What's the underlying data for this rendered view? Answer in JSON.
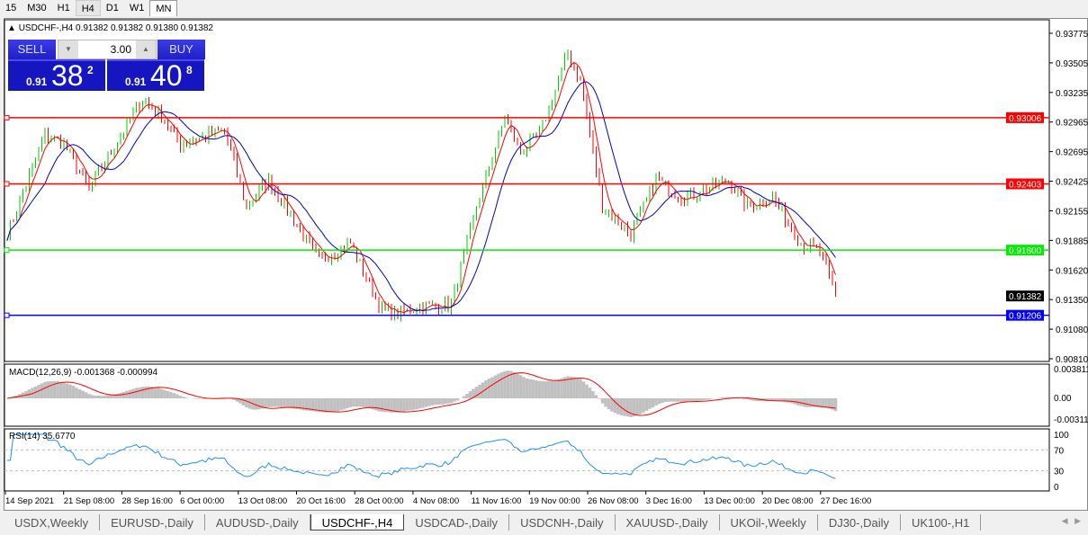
{
  "timeframes": [
    "15",
    "M30",
    "H1",
    "H4",
    "D1",
    "W1",
    "MN"
  ],
  "active_timeframe": "H4",
  "chart": {
    "title": "USDCHF-,H4  0.91382 0.91382 0.91380 0.91382",
    "trade": {
      "sell_label": "SELL",
      "buy_label": "BUY",
      "lot": "3.00",
      "sell_prefix": "0.91",
      "sell_big": "38",
      "sell_sup": "2",
      "buy_prefix": "0.91",
      "buy_big": "40",
      "buy_sup": "8"
    },
    "price_axis": [
      "0.93775",
      "0.93505",
      "0.93235",
      "0.92965",
      "0.92695",
      "0.92425",
      "0.92155",
      "0.91885",
      "0.91620",
      "0.91350",
      "0.91080",
      "0.90810"
    ],
    "levels": [
      {
        "price": 0.93006,
        "label": "0.93006",
        "color": "#ff0000"
      },
      {
        "price": 0.92403,
        "label": "0.92403",
        "color": "#ff0000"
      },
      {
        "price": 0.918,
        "label": "0.91800",
        "color": "#00ee00"
      },
      {
        "price": 0.91206,
        "label": "0.91206",
        "color": "#0000ff"
      }
    ],
    "current_price": "0.91382",
    "time_axis": [
      "14 Sep 2021",
      "21 Sep 08:00",
      "28 Sep 16:00",
      "6 Oct 00:00",
      "13 Oct 08:00",
      "20 Oct 16:00",
      "28 Oct 00:00",
      "4 Nov 08:00",
      "11 Nov 16:00",
      "19 Nov 00:00",
      "26 Nov 08:00",
      "3 Dec 16:00",
      "13 Dec 00:00",
      "20 Dec 08:00",
      "27 Dec 16:00"
    ],
    "macd": {
      "label": "MACD(12,26,9) -0.001368 -0.000994",
      "axis": [
        "0.003811",
        "0.00",
        "-0.003111"
      ]
    },
    "rsi": {
      "label": "RSI(14) 35.6770",
      "axis": [
        "100",
        "70",
        "30",
        "0"
      ]
    },
    "colors": {
      "up": "#00cc00",
      "down": "#ff0000",
      "fast_ma": "#ff0000",
      "slow_ma": "#0000cc",
      "macd_hist": "#c0c0c0",
      "macd_signal": "#ff0000",
      "rsi": "#1e90ff"
    }
  },
  "chart_data": {
    "type": "candlestick",
    "ylim": [
      0.9081,
      0.93775
    ],
    "close_path": [
      [
        0,
        0.91949
      ],
      [
        12,
        0.9285
      ],
      [
        18,
        0.92768
      ],
      [
        26,
        0.92358
      ],
      [
        43,
        0.93177
      ],
      [
        49,
        0.93013
      ],
      [
        55,
        0.92768
      ],
      [
        69,
        0.92891
      ],
      [
        76,
        0.92194
      ],
      [
        83,
        0.9244
      ],
      [
        92,
        0.92031
      ],
      [
        99,
        0.91703
      ],
      [
        109,
        0.91867
      ],
      [
        118,
        0.91294
      ],
      [
        123,
        0.91212
      ],
      [
        132,
        0.91294
      ],
      [
        141,
        0.91294
      ],
      [
        149,
        0.92194
      ],
      [
        158,
        0.93013
      ],
      [
        163,
        0.92686
      ],
      [
        169,
        0.9285
      ],
      [
        178,
        0.93587
      ],
      [
        182,
        0.93341
      ],
      [
        189,
        0.92194
      ],
      [
        198,
        0.91949
      ],
      [
        206,
        0.9244
      ],
      [
        215,
        0.92276
      ],
      [
        229,
        0.9244
      ],
      [
        235,
        0.92194
      ],
      [
        243,
        0.92276
      ],
      [
        252,
        0.91867
      ],
      [
        258,
        0.91785
      ],
      [
        263,
        0.91382
      ]
    ]
  },
  "tabs": [
    "USDX,Weekly",
    "EURUSD-,Daily",
    "AUDUSD-,Daily",
    "USDCHF-,H4",
    "USDCAD-,Daily",
    "USDCNH-,Daily",
    "XAUUSD-,Daily",
    "UKOil-,Weekly",
    "DJ30-,Daily",
    "UK100-,H1"
  ],
  "active_tab": "USDCHF-,H4"
}
